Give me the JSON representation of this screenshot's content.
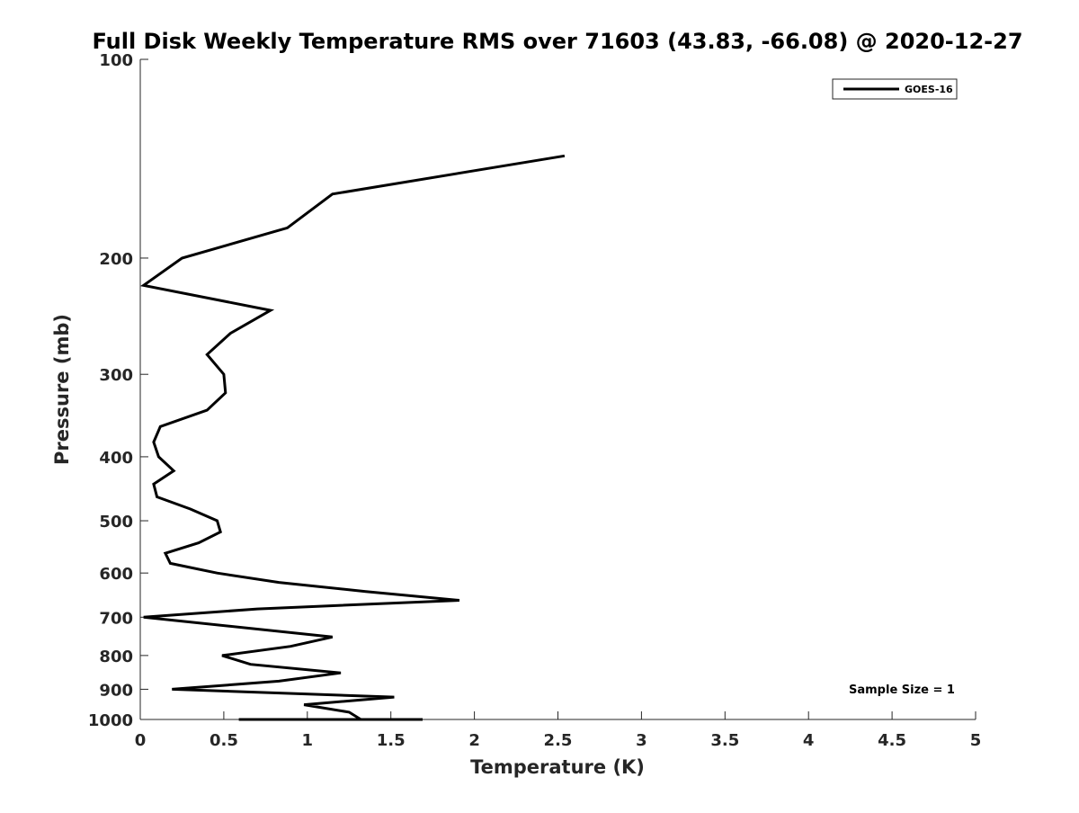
{
  "chart_data": {
    "type": "line",
    "title": "Full Disk Weekly Temperature RMS over 71603 (43.83, -66.08) @ 2020-12-27",
    "xlabel": "Temperature (K)",
    "ylabel": "Pressure (mb)",
    "xlim": [
      0,
      5
    ],
    "ylim": [
      1000,
      100
    ],
    "yscale": "log",
    "y_reversed": true,
    "x_ticks": [
      "0",
      "0.5",
      "1",
      "1.5",
      "2",
      "2.5",
      "3",
      "3.5",
      "4",
      "4.5",
      "5"
    ],
    "y_ticks": [
      "100",
      "200",
      "300",
      "400",
      "500",
      "600",
      "700",
      "800",
      "900",
      "1000"
    ],
    "grid": false,
    "legend_position": "top-right",
    "series": [
      {
        "name": "GOES-16",
        "color": "#000000",
        "points": [
          [
            2.54,
            140
          ],
          [
            1.15,
            160
          ],
          [
            0.88,
            180
          ],
          [
            0.25,
            200
          ],
          [
            0.02,
            220
          ],
          [
            0.78,
            240
          ],
          [
            0.54,
            260
          ],
          [
            0.4,
            280
          ],
          [
            0.5,
            300
          ],
          [
            0.51,
            320
          ],
          [
            0.4,
            340
          ],
          [
            0.12,
            360
          ],
          [
            0.08,
            380
          ],
          [
            0.11,
            400
          ],
          [
            0.2,
            420
          ],
          [
            0.08,
            440
          ],
          [
            0.1,
            460
          ],
          [
            0.3,
            480
          ],
          [
            0.46,
            500
          ],
          [
            0.48,
            520
          ],
          [
            0.35,
            540
          ],
          [
            0.15,
            560
          ],
          [
            0.18,
            580
          ],
          [
            0.46,
            600
          ],
          [
            0.83,
            620
          ],
          [
            1.35,
            640
          ],
          [
            1.91,
            660
          ],
          [
            0.7,
            680
          ],
          [
            0.02,
            700
          ],
          [
            1.15,
            750
          ],
          [
            0.9,
            775
          ],
          [
            0.49,
            800
          ],
          [
            0.66,
            825
          ],
          [
            1.2,
            850
          ],
          [
            0.83,
            875
          ],
          [
            0.19,
            900
          ],
          [
            1.52,
            925
          ],
          [
            0.98,
            950
          ],
          [
            1.25,
            975
          ],
          [
            1.32,
            1000
          ],
          [
            0.59,
            1025
          ],
          [
            1.05,
            1050
          ],
          [
            1.69,
            1075
          ]
        ]
      }
    ],
    "annotations": [
      "Sample Size = 1"
    ]
  }
}
